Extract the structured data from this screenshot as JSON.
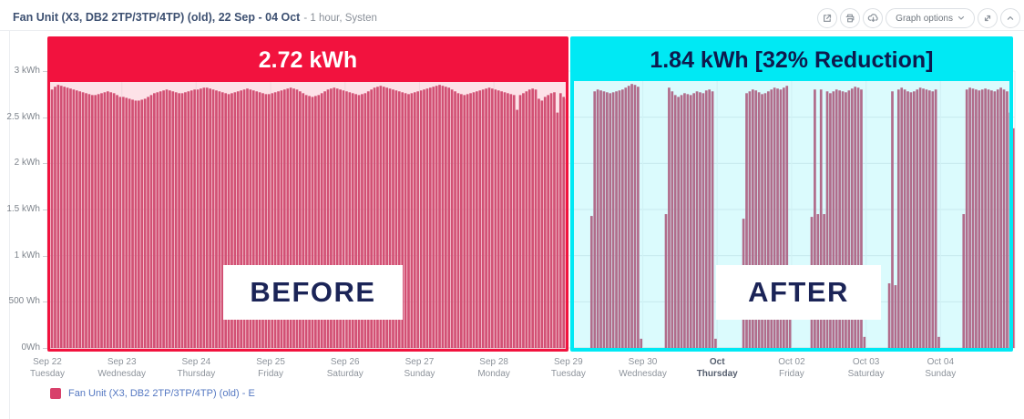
{
  "header": {
    "title": "Fan Unit (X3, DB2 2TP/3TP/4TP) (old), 22 Sep - 04 Oct",
    "subtitle": "- 1 hour, Systen",
    "graph_options_label": "Graph options"
  },
  "chart_data": {
    "type": "bar",
    "title": "",
    "xlabel": "",
    "ylabel": "",
    "unit": "kWh",
    "ylim": [
      0,
      3
    ],
    "grid": true,
    "legend_position": "bottom-left",
    "yticks": [
      {
        "label": "3 kWh",
        "value": 3
      },
      {
        "label": "2.5 kWh",
        "value": 2.5
      },
      {
        "label": "2 kWh",
        "value": 2
      },
      {
        "label": "1.5 kWh",
        "value": 1.5
      },
      {
        "label": "1 kWh",
        "value": 1
      },
      {
        "label": "500 Wh",
        "value": 0.5
      },
      {
        "label": "0Wh",
        "value": 0
      }
    ],
    "series": [
      {
        "name": "Fan Unit (X3, DB2 2TP/3TP/4TP) (old) - E",
        "color": "#ce597b"
      }
    ],
    "days": [
      {
        "date": "Sep 22",
        "weekday": "Tuesday",
        "bold": false,
        "hours": [
          2.78,
          2.8,
          2.83,
          2.85,
          2.84,
          2.83,
          2.82,
          2.81,
          2.8,
          2.79,
          2.78,
          2.77,
          2.76,
          2.75,
          2.74,
          2.74,
          2.75,
          2.76,
          2.77,
          2.78,
          2.77,
          2.76,
          2.74,
          2.72
        ]
      },
      {
        "date": "Sep 23",
        "weekday": "Wednesday",
        "bold": false,
        "hours": [
          2.72,
          2.71,
          2.7,
          2.69,
          2.68,
          2.68,
          2.69,
          2.7,
          2.72,
          2.74,
          2.76,
          2.77,
          2.78,
          2.79,
          2.8,
          2.79,
          2.78,
          2.77,
          2.76,
          2.76,
          2.77,
          2.78,
          2.79,
          2.8
        ]
      },
      {
        "date": "Sep 24",
        "weekday": "Thursday",
        "bold": false,
        "hours": [
          2.8,
          2.81,
          2.82,
          2.82,
          2.81,
          2.8,
          2.79,
          2.78,
          2.77,
          2.76,
          2.75,
          2.76,
          2.77,
          2.78,
          2.79,
          2.8,
          2.81,
          2.8,
          2.79,
          2.78,
          2.77,
          2.76,
          2.75,
          2.75
        ]
      },
      {
        "date": "Sep 25",
        "weekday": "Friday",
        "bold": false,
        "hours": [
          2.76,
          2.77,
          2.78,
          2.79,
          2.8,
          2.81,
          2.82,
          2.81,
          2.8,
          2.78,
          2.76,
          2.74,
          2.73,
          2.72,
          2.73,
          2.74,
          2.76,
          2.78,
          2.8,
          2.81,
          2.82,
          2.81,
          2.8,
          2.79
        ]
      },
      {
        "date": "Sep 26",
        "weekday": "Saturday",
        "bold": false,
        "hours": [
          2.78,
          2.77,
          2.76,
          2.75,
          2.74,
          2.75,
          2.76,
          2.78,
          2.8,
          2.82,
          2.83,
          2.84,
          2.83,
          2.82,
          2.81,
          2.8,
          2.79,
          2.78,
          2.77,
          2.76,
          2.75,
          2.76,
          2.77,
          2.78
        ]
      },
      {
        "date": "Sep 27",
        "weekday": "Sunday",
        "bold": false,
        "hours": [
          2.79,
          2.8,
          2.81,
          2.82,
          2.83,
          2.84,
          2.85,
          2.84,
          2.83,
          2.82,
          2.8,
          2.78,
          2.76,
          2.75,
          2.74,
          2.75,
          2.76,
          2.77,
          2.78,
          2.79,
          2.8,
          2.81,
          2.82,
          2.81
        ]
      },
      {
        "date": "Sep 28",
        "weekday": "Monday",
        "bold": false,
        "hours": [
          2.8,
          2.79,
          2.78,
          2.77,
          2.76,
          2.75,
          2.74,
          2.58,
          2.74,
          2.76,
          2.78,
          2.8,
          2.81,
          2.8,
          2.7,
          2.68,
          2.72,
          2.74,
          2.76,
          2.77,
          2.55,
          2.76,
          2.72,
          2.7
        ]
      },
      {
        "date": "Sep 29",
        "weekday": "Tuesday",
        "bold": false,
        "hours": [
          0,
          0,
          0,
          0,
          0,
          0,
          0,
          1.43,
          2.78,
          2.8,
          2.79,
          2.78,
          2.77,
          2.76,
          2.77,
          2.78,
          2.79,
          2.8,
          2.82,
          2.84,
          2.86,
          2.85,
          2.83,
          0.1
        ]
      },
      {
        "date": "Sep 30",
        "weekday": "Wednesday",
        "bold": false,
        "hours": [
          0,
          0,
          0,
          0,
          0,
          0,
          0,
          1.45,
          2.82,
          2.78,
          2.74,
          2.72,
          2.74,
          2.76,
          2.75,
          2.74,
          2.76,
          2.78,
          2.77,
          2.76,
          2.79,
          2.8,
          2.78,
          0.1
        ]
      },
      {
        "date": "Oct",
        "weekday": "Thursday",
        "bold": true,
        "hours": [
          0,
          0,
          0,
          0,
          0,
          0,
          0,
          0,
          1.4,
          2.76,
          2.78,
          2.8,
          2.79,
          2.77,
          2.75,
          2.76,
          2.78,
          2.8,
          2.82,
          2.81,
          2.8,
          2.82,
          2.84,
          0.35
        ]
      },
      {
        "date": "Oct 02",
        "weekday": "Friday",
        "bold": false,
        "hours": [
          0,
          0,
          0,
          0,
          0,
          0,
          1.42,
          2.8,
          1.45,
          2.8,
          1.45,
          2.78,
          2.76,
          2.78,
          2.8,
          2.79,
          2.78,
          2.77,
          2.79,
          2.81,
          2.83,
          2.82,
          2.8,
          0.12
        ]
      },
      {
        "date": "Oct 03",
        "weekday": "Saturday",
        "bold": false,
        "hours": [
          0,
          0,
          0,
          0,
          0,
          0,
          0,
          0.7,
          2.78,
          0.68,
          2.8,
          2.82,
          2.8,
          2.78,
          2.77,
          2.78,
          2.8,
          2.82,
          2.81,
          2.8,
          2.79,
          2.78,
          2.8,
          0.12
        ]
      },
      {
        "date": "Oct 04",
        "weekday": "Sunday",
        "bold": false,
        "hours": [
          0,
          0,
          0,
          0,
          0,
          0,
          0,
          1.45,
          2.8,
          2.82,
          2.81,
          2.8,
          2.79,
          2.8,
          2.81,
          2.8,
          2.79,
          2.78,
          2.8,
          2.82,
          2.8,
          2.78,
          2.55,
          2.38
        ]
      }
    ],
    "annotations": {
      "before": {
        "banner_text": "2.72 kWh",
        "box_label": "BEFORE",
        "day_start": 0,
        "day_end": 7,
        "color": "#f2123e"
      },
      "after": {
        "banner_text": "1.84 kWh [32% Reduction]",
        "box_label": "AFTER",
        "day_start": 7,
        "day_end": 13,
        "color": "#00e9f4"
      }
    },
    "legend": [
      {
        "label": "Fan Unit (X3, DB2 2TP/3TP/4TP) (old) - E",
        "color": "#d8416b"
      }
    ]
  }
}
